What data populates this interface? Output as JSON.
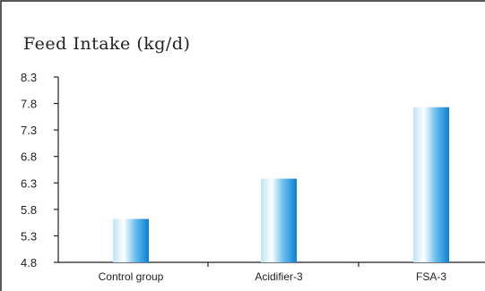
{
  "chart_data": {
    "type": "bar",
    "title": "Feed Intake (kg/d)",
    "xlabel": "",
    "ylabel": "",
    "categories": [
      "Control group",
      "Acidifier-3",
      "FSA-3"
    ],
    "values": [
      5.62,
      6.38,
      7.73
    ],
    "ylim": [
      4.8,
      8.3
    ],
    "yticks": [
      "4.8",
      "5.3",
      "5.8",
      "6.3",
      "6.8",
      "7.3",
      "7.8",
      "8.3"
    ],
    "grid": false,
    "legend": "none",
    "colors": {
      "bar_edge": "#0a7fd4",
      "bar_mid": "#ffffff",
      "axis": "#222222"
    }
  }
}
